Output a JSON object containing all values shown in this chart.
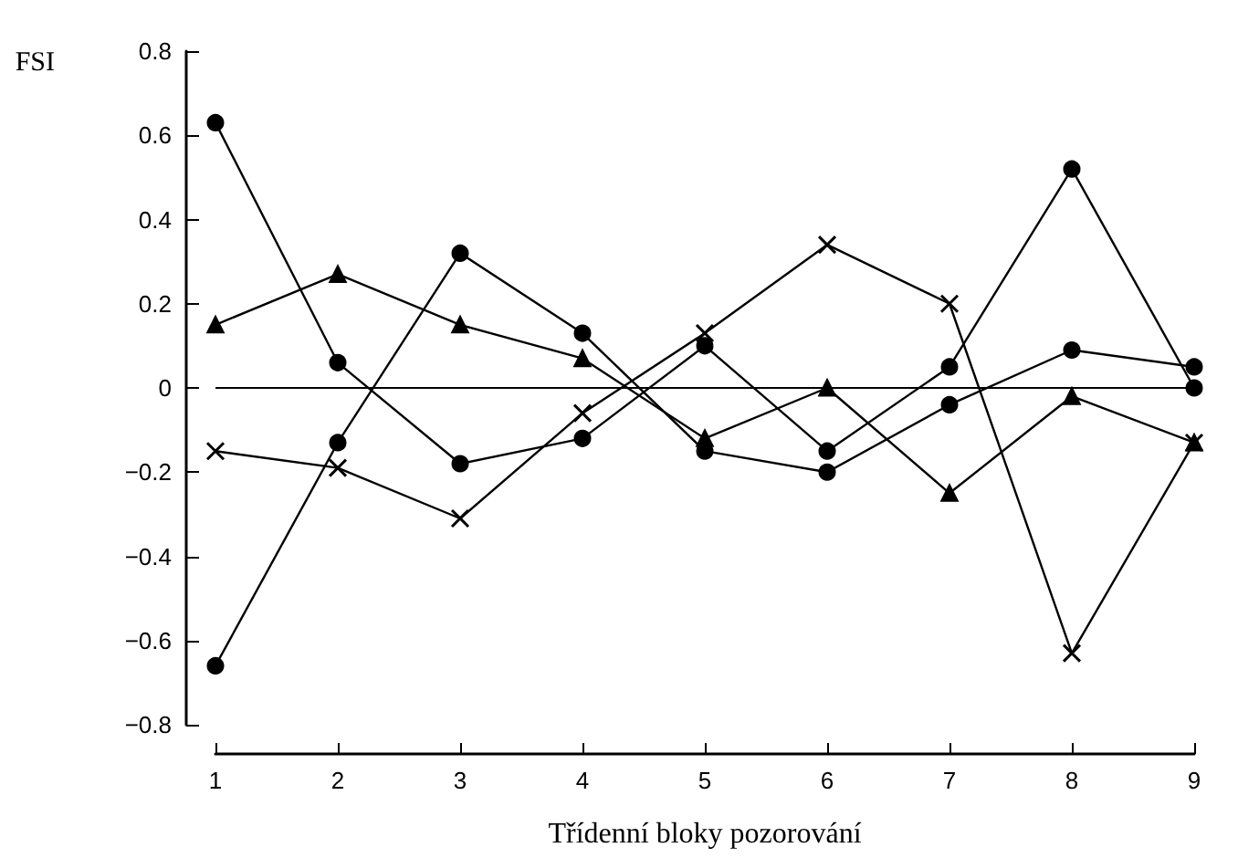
{
  "chart_data": {
    "type": "line",
    "ylabel": "FSI",
    "xlabel": "Třídenní bloky pozorování",
    "categories": [
      "1",
      "2",
      "3",
      "4",
      "5",
      "6",
      "7",
      "8",
      "9"
    ],
    "series": [
      {
        "color": "#000000",
        "marker": "circle",
        "values": [
          0.63,
          0.06,
          -0.18,
          -0.12,
          0.1,
          -0.15,
          0.05,
          0.52,
          0.0
        ]
      },
      {
        "color": "#000000",
        "marker": "triangle",
        "values": [
          0.15,
          0.27,
          0.15,
          0.07,
          -0.12,
          0.0,
          -0.25,
          -0.02,
          -0.13
        ]
      },
      {
        "color": "#000000",
        "marker": "circle",
        "values": [
          -0.66,
          -0.13,
          0.32,
          0.13,
          -0.15,
          -0.2,
          -0.04,
          0.09,
          0.05
        ]
      },
      {
        "color": "#000000",
        "marker": "cross",
        "values": [
          -0.15,
          -0.19,
          -0.31,
          -0.06,
          0.13,
          0.34,
          0.2,
          -0.63,
          -0.13
        ]
      }
    ],
    "ylim": [
      -0.8,
      0.8
    ],
    "yticks": [
      -0.8,
      -0.6,
      -0.4,
      -0.2,
      0,
      0.2,
      0.4,
      0.6,
      0.8
    ],
    "ref_lines": [
      {
        "axis": "y",
        "value": 0
      }
    ],
    "grid": false,
    "line_style": "solid"
  }
}
